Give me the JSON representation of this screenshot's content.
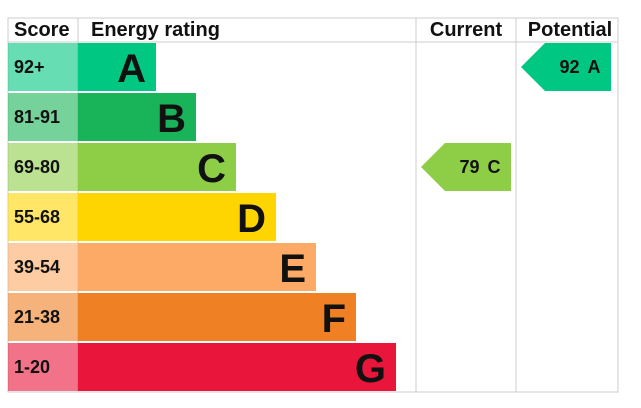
{
  "chart_data": {
    "type": "epc",
    "headers": [
      "Score",
      "Energy rating",
      "Current",
      "Potential"
    ],
    "bands": [
      {
        "score": "92+",
        "letter": "A",
        "color": "#00c781"
      },
      {
        "score": "81-91",
        "letter": "B",
        "color": "#19b459"
      },
      {
        "score": "69-80",
        "letter": "C",
        "color": "#8dce46"
      },
      {
        "score": "55-68",
        "letter": "D",
        "color": "#ffd500"
      },
      {
        "score": "39-54",
        "letter": "E",
        "color": "#fcaa65"
      },
      {
        "score": "21-38",
        "letter": "F",
        "color": "#ef8023"
      },
      {
        "score": "1-20",
        "letter": "G",
        "color": "#e9153b"
      }
    ],
    "current": {
      "value": 79,
      "rating": "C"
    },
    "potential": {
      "value": 92,
      "rating": "A"
    }
  }
}
